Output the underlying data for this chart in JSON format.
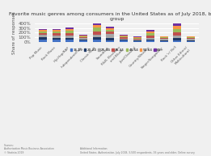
{
  "title": "Favorite music genres among consumers in the United States as of July 2018, by age\ngroup",
  "ylabel": "Share of responses",
  "categories": [
    "Pop Music",
    "Rock Music",
    "Hip-Hop/RAP",
    "Independent/Folk",
    "Classic Rock",
    "Soundtrak",
    "R&B, Electronic\nand Blues",
    "Jazz/Classical",
    "Country/Western",
    "Singer/Songwriter",
    "Rock 'n' Roll",
    "Other Ethnic/\nMulticultural"
  ],
  "age_groups": [
    "16-19",
    "20-24",
    "25-34",
    "35-44",
    "45-54",
    "55-64",
    "65+"
  ],
  "colors": [
    "#4472C4",
    "#1F3864",
    "#A6A6A6",
    "#C0504D",
    "#9BBB59",
    "#F79646",
    "#7030A0"
  ],
  "data": [
    [
      48,
      52,
      55,
      42,
      32,
      28,
      22
    ],
    [
      52,
      42,
      42,
      48,
      42,
      32,
      22
    ],
    [
      48,
      42,
      48,
      52,
      48,
      38,
      28
    ],
    [
      28,
      28,
      28,
      22,
      18,
      18,
      12
    ],
    [
      48,
      52,
      62,
      72,
      72,
      62,
      52
    ],
    [
      42,
      52,
      78,
      52,
      38,
      38,
      32
    ],
    [
      28,
      22,
      28,
      22,
      18,
      18,
      12
    ],
    [
      18,
      18,
      22,
      18,
      18,
      18,
      12
    ],
    [
      28,
      28,
      38,
      42,
      48,
      38,
      32
    ],
    [
      18,
      22,
      22,
      18,
      18,
      18,
      12
    ],
    [
      38,
      48,
      58,
      68,
      68,
      62,
      52
    ],
    [
      22,
      18,
      22,
      18,
      18,
      18,
      12
    ]
  ],
  "ylim": [
    0,
    400
  ],
  "yticks": [
    0,
    100,
    200,
    300,
    400
  ],
  "ytick_labels": [
    "0%",
    "100%",
    "200%",
    "300%",
    "400%"
  ],
  "source_text": "Sources:\nAuthorization Music Business Association\n© Statista 2019",
  "additional_info": "Additional Information:\nUnited States, Authorization, July 2018, 3,500 respondents, 16 years and older, Online survey",
  "bg_color": "#f0f0f0",
  "grid_color": "#ffffff"
}
